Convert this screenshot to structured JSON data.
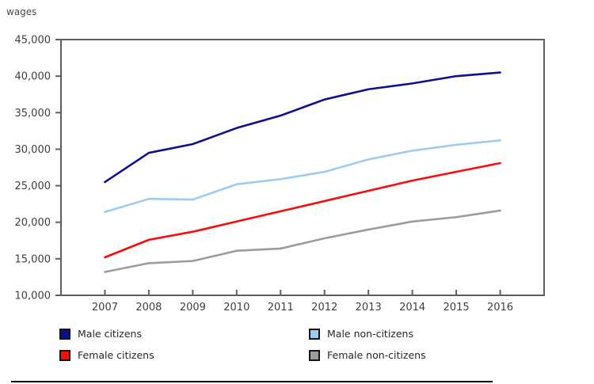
{
  "chart_data": {
    "type": "line",
    "ylabel": "wages",
    "x": [
      "2007",
      "2008",
      "2009",
      "2010",
      "2011",
      "2012",
      "2013",
      "2014",
      "2015",
      "2016"
    ],
    "ylim": [
      10000,
      45000
    ],
    "yticks": [
      10000,
      15000,
      20000,
      25000,
      30000,
      35000,
      40000,
      45000
    ],
    "ytick_labels": [
      "10,000",
      "15,000",
      "20,000",
      "25,000",
      "30,000",
      "35,000",
      "40,000",
      "45,000"
    ],
    "grid": false,
    "legend_position": "bottom",
    "series": [
      {
        "name": "Male citizens",
        "color": "#10108f",
        "values": [
          25500,
          29500,
          30700,
          32900,
          34600,
          36800,
          38200,
          39000,
          40000,
          40500
        ]
      },
      {
        "name": "Male non-citizens",
        "color": "#9dccf2",
        "values": [
          21400,
          23200,
          23100,
          25200,
          25900,
          26900,
          28600,
          29800,
          30600,
          31200
        ]
      },
      {
        "name": "Female citizens",
        "color": "#fb0a0a",
        "values": [
          15200,
          17600,
          18700,
          20100,
          21500,
          22900,
          24300,
          25700,
          26900,
          28100
        ]
      },
      {
        "name": "Female non-citizens",
        "color": "#9c9c9c",
        "values": [
          13200,
          14400,
          14700,
          16100,
          16400,
          17800,
          19000,
          20100,
          20700,
          21600
        ]
      }
    ],
    "colors": {
      "frame": "#5f5f5f",
      "tick_text": "#404040"
    }
  }
}
